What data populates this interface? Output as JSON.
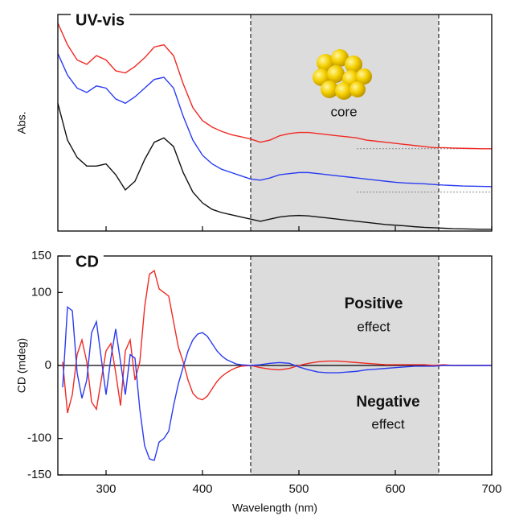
{
  "chart_data": [
    {
      "type": "line",
      "title": "UV-vis",
      "ylabel": "Abs.",
      "x": [
        250,
        260,
        270,
        280,
        290,
        300,
        310,
        320,
        330,
        340,
        350,
        360,
        370,
        380,
        390,
        400,
        410,
        420,
        430,
        440,
        450,
        460,
        470,
        480,
        490,
        500,
        510,
        520,
        530,
        540,
        550,
        560,
        570,
        580,
        590,
        600,
        610,
        620,
        630,
        640,
        650,
        660,
        670,
        680,
        690,
        700
      ],
      "series": [
        {
          "color": "#f02a24",
          "values": [
            0.96,
            0.86,
            0.79,
            0.77,
            0.81,
            0.79,
            0.74,
            0.73,
            0.76,
            0.8,
            0.85,
            0.86,
            0.81,
            0.68,
            0.57,
            0.51,
            0.48,
            0.46,
            0.445,
            0.435,
            0.425,
            0.41,
            0.42,
            0.44,
            0.45,
            0.455,
            0.455,
            0.45,
            0.445,
            0.44,
            0.435,
            0.43,
            0.42,
            0.415,
            0.41,
            0.405,
            0.4,
            0.395,
            0.39,
            0.385,
            0.385,
            0.383,
            0.382,
            0.381,
            0.38,
            0.38
          ]
        },
        {
          "color": "#2a3cf0",
          "values": [
            0.82,
            0.72,
            0.66,
            0.64,
            0.67,
            0.66,
            0.61,
            0.59,
            0.62,
            0.66,
            0.7,
            0.71,
            0.66,
            0.53,
            0.42,
            0.35,
            0.31,
            0.285,
            0.27,
            0.255,
            0.24,
            0.235,
            0.245,
            0.26,
            0.265,
            0.27,
            0.27,
            0.265,
            0.26,
            0.255,
            0.25,
            0.245,
            0.24,
            0.235,
            0.23,
            0.225,
            0.222,
            0.22,
            0.218,
            0.215,
            0.212,
            0.21,
            0.208,
            0.207,
            0.206,
            0.205
          ]
        },
        {
          "color": "#111111",
          "values": [
            0.59,
            0.42,
            0.34,
            0.3,
            0.3,
            0.31,
            0.26,
            0.19,
            0.23,
            0.33,
            0.41,
            0.43,
            0.39,
            0.27,
            0.18,
            0.13,
            0.1,
            0.085,
            0.075,
            0.065,
            0.055,
            0.045,
            0.055,
            0.065,
            0.07,
            0.072,
            0.07,
            0.065,
            0.06,
            0.055,
            0.05,
            0.045,
            0.04,
            0.035,
            0.03,
            0.027,
            0.024,
            0.02,
            0.017,
            0.015,
            0.013,
            0.011,
            0.01,
            0.009,
            0.008,
            0.008
          ]
        }
      ],
      "xlim": [
        250,
        700
      ],
      "ylim": [
        0,
        1
      ],
      "xticks": [
        300,
        400,
        500,
        600,
        700
      ],
      "xtick_labels": false,
      "shaded_range": [
        450,
        645
      ],
      "shade_color": "#dcdcdc",
      "reference_lines": [
        0.38,
        0.18
      ],
      "reference_xlim": [
        560,
        700
      ],
      "annotations": [
        {
          "text": "core",
          "color": "#111111",
          "bold": false
        }
      ]
    },
    {
      "type": "line",
      "title": "CD",
      "xlabel": "Wavelength (nm)",
      "ylabel": "CD (mdeg)",
      "x": [
        255,
        260,
        265,
        270,
        275,
        280,
        285,
        290,
        295,
        300,
        305,
        310,
        315,
        320,
        325,
        330,
        335,
        340,
        345,
        350,
        355,
        360,
        365,
        370,
        375,
        380,
        385,
        390,
        395,
        400,
        405,
        410,
        415,
        420,
        425,
        430,
        435,
        440,
        450,
        460,
        470,
        480,
        490,
        500,
        510,
        520,
        530,
        540,
        550,
        560,
        570,
        580,
        590,
        600,
        610,
        620,
        630,
        640,
        650,
        660,
        670,
        680,
        690,
        700
      ],
      "series": [
        {
          "color": "#f02a24",
          "values": [
            5,
            -65,
            -40,
            15,
            35,
            5,
            -50,
            -60,
            -20,
            20,
            30,
            -10,
            -55,
            20,
            35,
            -20,
            5,
            80,
            125,
            130,
            105,
            100,
            95,
            60,
            25,
            5,
            -20,
            -38,
            -45,
            -47,
            -42,
            -32,
            -22,
            -15,
            -10,
            -6,
            -3,
            -1,
            0,
            -3,
            -5,
            -6,
            -4,
            0,
            3,
            5,
            6,
            6,
            5,
            4,
            3,
            2,
            1,
            1,
            1,
            1,
            1,
            0,
            1,
            0,
            0,
            0,
            0,
            0
          ]
        },
        {
          "color": "#2a3cf0",
          "values": [
            -30,
            80,
            75,
            -10,
            -45,
            -20,
            45,
            60,
            10,
            -40,
            10,
            50,
            5,
            -40,
            15,
            10,
            -60,
            -110,
            -128,
            -130,
            -105,
            -100,
            -90,
            -55,
            -25,
            -2,
            20,
            35,
            43,
            45,
            40,
            30,
            20,
            13,
            8,
            5,
            2,
            1,
            0,
            1,
            3,
            4,
            3,
            -2,
            -6,
            -9,
            -10,
            -10,
            -9,
            -8,
            -6,
            -5,
            -4,
            -3,
            -2,
            -1,
            -1,
            -1,
            0,
            0,
            0,
            0,
            0,
            0
          ]
        }
      ],
      "xlim": [
        250,
        700
      ],
      "ylim": [
        -150,
        150
      ],
      "xticks": [
        300,
        400,
        500,
        600,
        700
      ],
      "yticks": [
        -150,
        -100,
        0,
        100,
        150
      ],
      "zero_line": true,
      "shaded_range": [
        450,
        645
      ],
      "shade_color": "#dcdcdc",
      "annotations": [
        {
          "text": "Positive",
          "color": "#f02a24",
          "bold": true
        },
        {
          "text": "effect",
          "color": "#f02a24",
          "bold": false
        },
        {
          "text": "Negative",
          "color": "#2a3cf0",
          "bold": true
        },
        {
          "text": "effect",
          "color": "#2a3cf0",
          "bold": false
        }
      ]
    }
  ]
}
